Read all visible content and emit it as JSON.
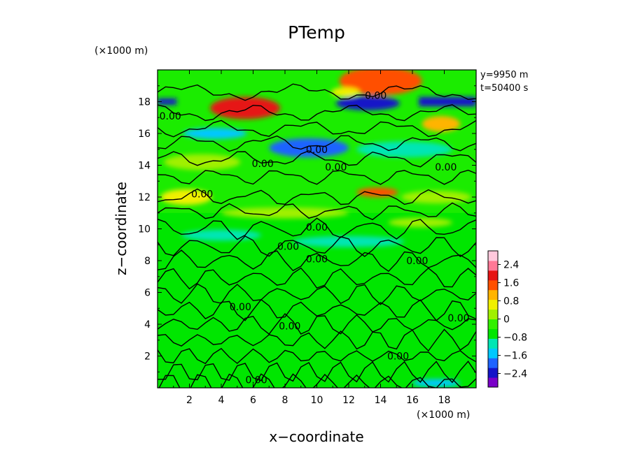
{
  "chart_data": {
    "type": "heatmap",
    "title": "PTemp",
    "xlabel": "x−coordinate",
    "ylabel": "z−coordinate",
    "x_unit": "(×1000 m)",
    "y_unit": "(×1000 m)",
    "xlim": [
      0,
      20
    ],
    "ylim": [
      0,
      20
    ],
    "x_ticks": [
      "2",
      "4",
      "6",
      "8",
      "10",
      "12",
      "14",
      "16",
      "18"
    ],
    "y_ticks": [
      "2",
      "4",
      "6",
      "8",
      "10",
      "12",
      "14",
      "16",
      "18"
    ],
    "annotations": [
      "y=9950  m",
      "t=50400  s"
    ],
    "contour_level": "0.00",
    "contour_labels": [
      {
        "text": "0.00",
        "x": 0.8,
        "y": 17.1
      },
      {
        "text": "0.00",
        "x": 13.7,
        "y": 18.4
      },
      {
        "text": "0.00",
        "x": 10.0,
        "y": 15.0
      },
      {
        "text": "0.00",
        "x": 6.6,
        "y": 14.1
      },
      {
        "text": "0.00",
        "x": 11.2,
        "y": 13.9
      },
      {
        "text": "0.00",
        "x": 18.1,
        "y": 13.9
      },
      {
        "text": "0.00",
        "x": 2.8,
        "y": 12.2
      },
      {
        "text": "0.00",
        "x": 10.0,
        "y": 10.1
      },
      {
        "text": "0.00",
        "x": 8.2,
        "y": 8.9
      },
      {
        "text": "0.00",
        "x": 10.0,
        "y": 8.1
      },
      {
        "text": "0.00",
        "x": 16.3,
        "y": 8.0
      },
      {
        "text": "0.00",
        "x": 5.2,
        "y": 5.1
      },
      {
        "text": "0.00",
        "x": 8.3,
        "y": 3.9
      },
      {
        "text": "0.00",
        "x": 18.9,
        "y": 4.4
      },
      {
        "text": "0.00",
        "x": 15.1,
        "y": 2.0
      },
      {
        "text": "0.00",
        "x": 6.2,
        "y": 0.5
      }
    ],
    "colorbar": {
      "range": [
        -3.0,
        3.0
      ],
      "ticks": [
        "2.4",
        "1.6",
        "0.8",
        "0",
        "−0.8",
        "−1.6",
        "−2.4"
      ],
      "tick_values": [
        2.4,
        1.6,
        0.8,
        0,
        -0.8,
        -1.6,
        -2.4
      ],
      "colors": [
        "#7a00c8",
        "#1414c8",
        "#1e64ff",
        "#00c8ff",
        "#00e6b4",
        "#00e600",
        "#32f000",
        "#a0f000",
        "#f0f000",
        "#ffb400",
        "#ff5000",
        "#e61414",
        "#ff7896",
        "#ffc8dc"
      ]
    },
    "regions": [
      {
        "type": "band",
        "y": [
          18.2,
          17.8
        ],
        "color": "#1414c8",
        "x": [
          0,
          1.2
        ]
      },
      {
        "type": "band",
        "y": [
          18.3,
          17.7
        ],
        "color": "#1414c8",
        "x": [
          16.4,
          20
        ]
      },
      {
        "type": "blob",
        "x": 14.0,
        "y": 19.3,
        "rx": 2.6,
        "ry": 0.9,
        "color": "#ff5000"
      },
      {
        "type": "blob",
        "x": 5.5,
        "y": 17.6,
        "rx": 2.2,
        "ry": 0.7,
        "color": "#e61414"
      },
      {
        "type": "blob",
        "x": 13.2,
        "y": 17.9,
        "rx": 2.0,
        "ry": 0.45,
        "color": "#1414c8"
      },
      {
        "type": "blob",
        "x": 9.5,
        "y": 15.1,
        "rx": 2.5,
        "ry": 0.6,
        "color": "#1e64ff"
      },
      {
        "type": "blob",
        "x": 3.6,
        "y": 16.0,
        "rx": 2.0,
        "ry": 0.35,
        "color": "#00c8ff"
      },
      {
        "type": "blob",
        "x": 13.8,
        "y": 12.3,
        "rx": 1.3,
        "ry": 0.3,
        "color": "#ff5000"
      },
      {
        "type": "blob",
        "x": 1.8,
        "y": 12.0,
        "rx": 1.6,
        "ry": 0.5,
        "color": "#f0f000"
      },
      {
        "type": "blob",
        "x": 17.8,
        "y": 16.6,
        "rx": 1.2,
        "ry": 0.5,
        "color": "#ffb400"
      },
      {
        "type": "blob",
        "x": 11.8,
        "y": 18.6,
        "rx": 0.9,
        "ry": 0.3,
        "color": "#f0f000"
      },
      {
        "type": "blob",
        "x": 2.8,
        "y": 14.2,
        "rx": 2.4,
        "ry": 0.5,
        "color": "#a0f000"
      },
      {
        "type": "blob",
        "x": 15.5,
        "y": 15.0,
        "rx": 3.0,
        "ry": 0.5,
        "color": "#00e6b4"
      },
      {
        "type": "blob",
        "x": 17.5,
        "y": 12.0,
        "rx": 2.2,
        "ry": 0.4,
        "color": "#a0f000"
      },
      {
        "type": "blob",
        "x": 8.0,
        "y": 11.0,
        "rx": 4.0,
        "ry": 0.35,
        "color": "#a0f000"
      },
      {
        "type": "blob",
        "x": 12.0,
        "y": 9.2,
        "rx": 3.5,
        "ry": 0.35,
        "color": "#00e6b4"
      },
      {
        "type": "blob",
        "x": 4.0,
        "y": 9.6,
        "rx": 2.5,
        "ry": 0.35,
        "color": "#00e6b4"
      },
      {
        "type": "blob",
        "x": 16.5,
        "y": 10.4,
        "rx": 2.0,
        "ry": 0.3,
        "color": "#a0f000"
      },
      {
        "type": "blob",
        "x": 17.5,
        "y": 0.3,
        "rx": 1.5,
        "ry": 0.25,
        "color": "#00c8ff"
      }
    ]
  }
}
